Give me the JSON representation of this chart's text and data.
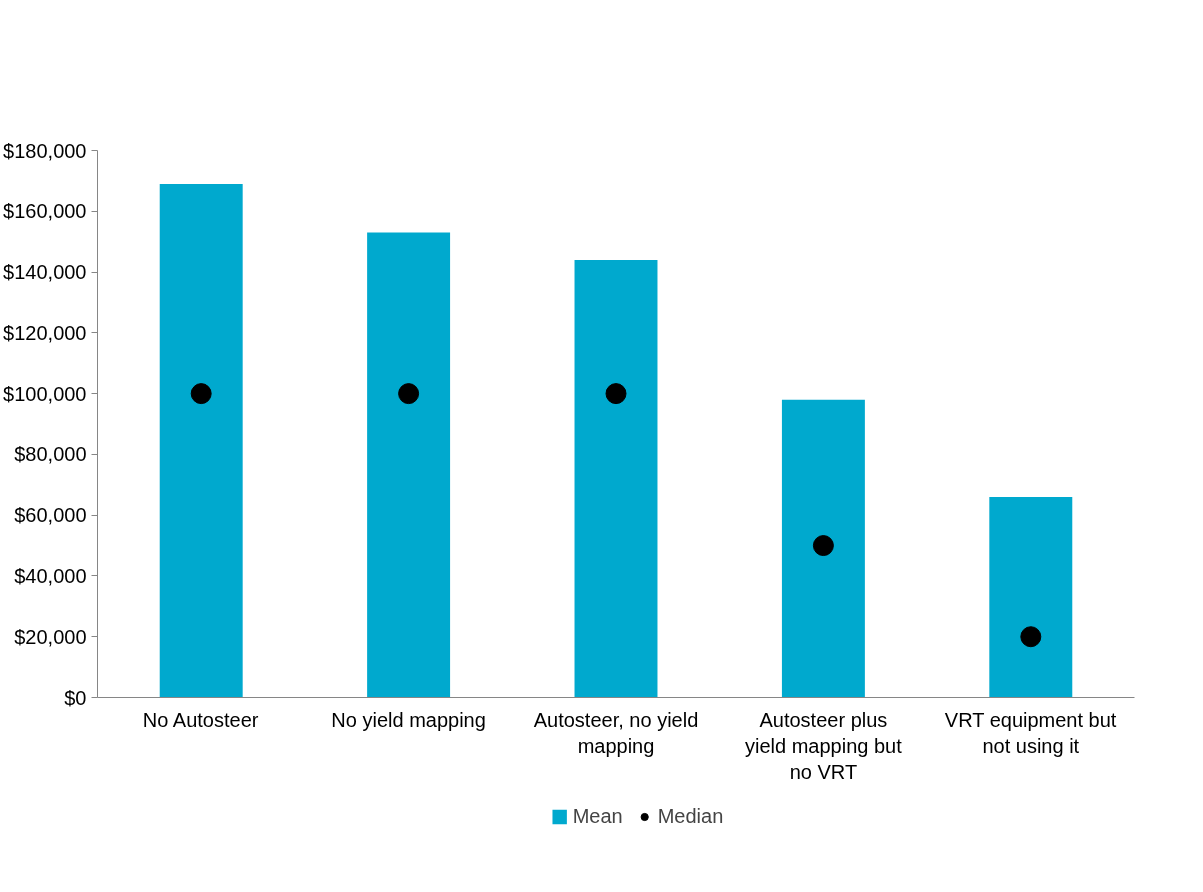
{
  "chart_data": {
    "type": "bar",
    "categories": [
      "No Autosteer",
      "No yield mapping",
      "Autosteer, no yield mapping",
      "Autosteer plus yield mapping but no VRT",
      "VRT equipment but not using it"
    ],
    "series": [
      {
        "name": "Mean",
        "color": "#00a9ce",
        "values": [
          169000,
          153000,
          144000,
          98000,
          66000
        ]
      },
      {
        "name": "Median",
        "type": "scatter",
        "color": "#000000",
        "marker": "circle",
        "values": [
          100000,
          100000,
          100000,
          50000,
          20000
        ]
      }
    ],
    "ylim": [
      0,
      180000
    ],
    "yticks": [
      {
        "value": 0,
        "label": "$0"
      },
      {
        "value": 20000,
        "label": "$20,000"
      },
      {
        "value": 40000,
        "label": "$40,000"
      },
      {
        "value": 60000,
        "label": "$60,000"
      },
      {
        "value": 80000,
        "label": "$80,000"
      },
      {
        "value": 100000,
        "label": "$100,000"
      },
      {
        "value": 120000,
        "label": "$120,000"
      },
      {
        "value": 140000,
        "label": "$140,000"
      },
      {
        "value": 160000,
        "label": "$160,000"
      },
      {
        "value": 180000,
        "label": "$180,000"
      }
    ],
    "grid": false,
    "legend": "bottom"
  }
}
